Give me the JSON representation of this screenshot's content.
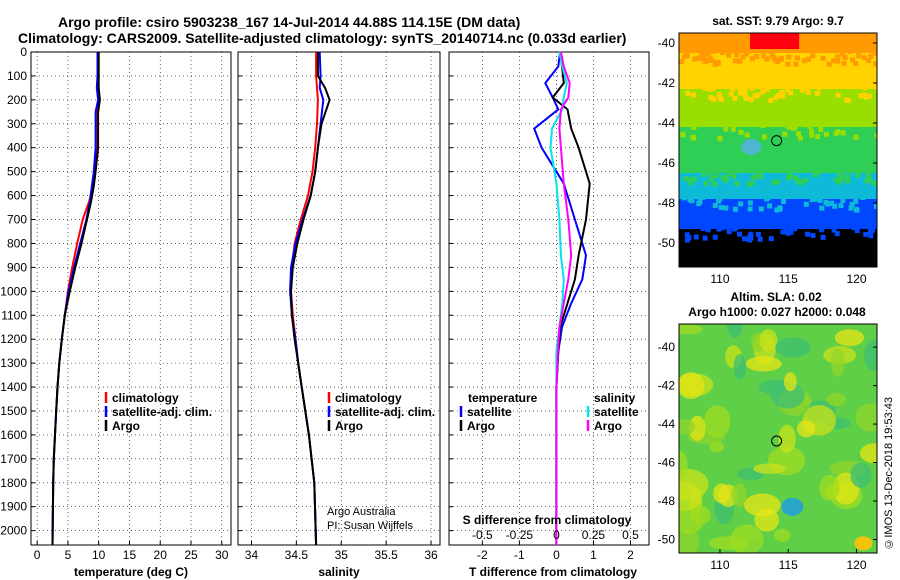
{
  "header": {
    "title_line1": "Argo profile: csiro 5903238_167 14-Jul-2014 44.88S 114.15E (DM data)",
    "title_line2": "Climatology: CARS2009. Satellite-adjusted climatology: synTS_20140714.nc (0.033d earlier)"
  },
  "footer": {
    "credit": "©IMOS 13-Dec-2018 19:53:43"
  },
  "colors": {
    "climatology": "#ff0000",
    "satellite": "#0000ff",
    "argo": "#000000",
    "sat_salinity": "#00e5ee",
    "argo_salinity": "#ff00ff"
  },
  "chart_data": [
    {
      "type": "line",
      "name": "temperature",
      "xlabel": "temperature (deg C)",
      "xlim": [
        -1,
        31.5
      ],
      "xticks": [
        "0",
        "5",
        "10",
        "15",
        "20",
        "25",
        "30"
      ],
      "xtick_values": [
        0,
        5,
        10,
        15,
        20,
        25,
        30
      ],
      "ylim": [
        0,
        2060
      ],
      "yticks": [
        "0",
        "100",
        "200",
        "300",
        "400",
        "500",
        "600",
        "700",
        "800",
        "900",
        "1000",
        "1100",
        "1200",
        "1300",
        "1400",
        "1500",
        "1600",
        "1700",
        "1800",
        "1900",
        "2000"
      ],
      "ytick_values": [
        0,
        100,
        200,
        300,
        400,
        500,
        600,
        700,
        800,
        900,
        1000,
        1100,
        1200,
        1300,
        1400,
        1500,
        1600,
        1700,
        1800,
        1900,
        2000
      ],
      "legend": [
        "climatology",
        "satellite-adj. clim.",
        "Argo"
      ],
      "legend_colors": [
        "#ff0000",
        "#0000ff",
        "#000000"
      ],
      "series": [
        {
          "name": "climatology",
          "color": "#ff0000",
          "x": [
            9.9,
            9.9,
            9.9,
            10.1,
            9.6,
            9.6,
            9.3,
            9.0,
            8.5,
            7.4,
            6.5,
            5.7,
            5.0,
            4.5,
            4.0,
            3.6,
            3.3,
            3.1,
            2.9,
            2.7,
            2.6,
            2.5
          ],
          "y": [
            0,
            100,
            150,
            200,
            250,
            400,
            500,
            560,
            620,
            700,
            800,
            900,
            1000,
            1100,
            1200,
            1300,
            1400,
            1500,
            1600,
            1700,
            1800,
            2060
          ]
        },
        {
          "name": "satellite-adj. clim.",
          "color": "#0000ff",
          "x": [
            9.8,
            9.8,
            9.7,
            9.9,
            9.5,
            9.5,
            9.2,
            8.9,
            8.6,
            8.0,
            7.0,
            6.0,
            5.1,
            4.5,
            4.0,
            3.6,
            3.3,
            3.1,
            2.9,
            2.7,
            2.6,
            2.5
          ],
          "y": [
            0,
            100,
            150,
            200,
            250,
            400,
            500,
            560,
            620,
            700,
            800,
            900,
            1000,
            1100,
            1200,
            1300,
            1400,
            1500,
            1600,
            1700,
            1800,
            2060
          ]
        },
        {
          "name": "Argo",
          "color": "#000000",
          "x": [
            10.0,
            10.0,
            10.0,
            10.2,
            9.9,
            9.9,
            9.5,
            9.2,
            8.8,
            8.1,
            7.2,
            6.2,
            5.3,
            4.5,
            4.0,
            3.6,
            3.3,
            3.1,
            2.9,
            2.7,
            2.6,
            2.5
          ],
          "y": [
            0,
            100,
            150,
            200,
            250,
            400,
            500,
            560,
            620,
            700,
            800,
            900,
            1000,
            1100,
            1200,
            1300,
            1400,
            1500,
            1600,
            1700,
            1800,
            2060
          ]
        }
      ]
    },
    {
      "type": "line",
      "name": "salinity",
      "xlabel": "salinity",
      "xlim": [
        33.85,
        36.1
      ],
      "xticks": [
        "34",
        "34.5",
        "35",
        "35.5",
        "36"
      ],
      "xtick_values": [
        34,
        34.5,
        35,
        35.5,
        36
      ],
      "ylim": [
        0,
        2060
      ],
      "legend": [
        "climatology",
        "satellite-adj. clim.",
        "Argo"
      ],
      "legend_colors": [
        "#ff0000",
        "#0000ff",
        "#000000"
      ],
      "annotation": [
        "Argo Australia",
        "PI: Susan Wijffels"
      ],
      "series": [
        {
          "name": "climatology",
          "color": "#ff0000",
          "x": [
            34.72,
            34.72,
            34.73,
            34.74,
            34.73,
            34.71,
            34.68,
            34.63,
            34.55,
            34.48,
            34.45,
            34.44,
            34.46,
            34.49,
            34.52,
            34.56,
            34.6,
            34.64,
            34.67,
            34.7,
            34.72
          ],
          "y": [
            0,
            100,
            150,
            200,
            300,
            400,
            500,
            600,
            700,
            800,
            900,
            1000,
            1100,
            1200,
            1300,
            1400,
            1500,
            1600,
            1700,
            1800,
            2060
          ]
        },
        {
          "name": "satellite-adj. clim.",
          "color": "#0000ff",
          "x": [
            34.76,
            34.77,
            34.76,
            34.8,
            34.77,
            34.74,
            34.71,
            34.66,
            34.57,
            34.49,
            34.44,
            34.43,
            34.45,
            34.49,
            34.52,
            34.56,
            34.6,
            34.64,
            34.67,
            34.7,
            34.72
          ],
          "y": [
            0,
            100,
            150,
            200,
            300,
            400,
            500,
            600,
            700,
            800,
            900,
            1000,
            1100,
            1200,
            1300,
            1400,
            1500,
            1600,
            1700,
            1800,
            2060
          ]
        },
        {
          "name": "Argo",
          "color": "#000000",
          "x": [
            34.74,
            34.74,
            34.82,
            34.87,
            34.78,
            34.74,
            34.71,
            34.66,
            34.58,
            34.51,
            34.46,
            34.44,
            34.45,
            34.48,
            34.52,
            34.56,
            34.6,
            34.64,
            34.67,
            34.7,
            34.72
          ],
          "y": [
            0,
            100,
            150,
            200,
            300,
            400,
            500,
            600,
            700,
            800,
            900,
            1000,
            1100,
            1200,
            1300,
            1400,
            1500,
            1600,
            1700,
            1800,
            2060
          ]
        }
      ]
    },
    {
      "type": "line",
      "name": "difference",
      "xlabel": "T difference from climatology",
      "xlabel2": "S difference from climatology",
      "xlim": [
        -2.9,
        2.5
      ],
      "xticks": [
        "-2",
        "-1",
        "0",
        "1",
        "2"
      ],
      "xtick_values": [
        -2,
        -1,
        0,
        1,
        2
      ],
      "sticks": [
        "-0.5",
        "-0.25",
        "0",
        "0.25",
        "0.5"
      ],
      "stick_values": [
        -0.5,
        -0.25,
        0,
        0.25,
        0.5
      ],
      "ylim": [
        0,
        2060
      ],
      "legend_left_title": "temperature",
      "legend_right_title": "salinity",
      "legend_left": [
        "satellite",
        "Argo"
      ],
      "legend_left_colors": [
        "#0000ff",
        "#000000"
      ],
      "legend_right": [
        "satellite",
        "Argo"
      ],
      "legend_right_colors": [
        "#00e5ee",
        "#ff00ff"
      ],
      "series": [
        {
          "name": "satellite",
          "quantity": "temperature",
          "color": "#0000ff",
          "x": [
            0.1,
            0.05,
            -0.3,
            -0.1,
            0.05,
            -0.6,
            -0.4,
            0.2,
            0.5,
            0.8,
            0.7,
            0.4,
            0.15,
            0.05,
            0,
            0,
            0,
            0
          ],
          "y": [
            0,
            60,
            130,
            190,
            240,
            320,
            400,
            550,
            700,
            850,
            950,
            1050,
            1150,
            1250,
            1400,
            1600,
            1800,
            2060
          ]
        },
        {
          "name": "Argo",
          "quantity": "temperature",
          "color": "#000000",
          "x": [
            0.1,
            0.15,
            0.2,
            -0.1,
            0.3,
            0.4,
            0.6,
            0.9,
            0.8,
            0.6,
            0.5,
            0.3,
            0.1,
            0.05,
            0,
            0,
            0,
            0
          ],
          "y": [
            0,
            60,
            130,
            190,
            240,
            320,
            400,
            550,
            700,
            850,
            950,
            1050,
            1150,
            1250,
            1400,
            1600,
            1800,
            2060
          ]
        },
        {
          "name": "satellite",
          "quantity": "salinity",
          "color": "#00e5ee",
          "x": [
            0.02,
            0.04,
            0.07,
            0.05,
            0.04,
            -0.03,
            -0.04,
            0.0,
            0.02,
            0.03,
            0.05,
            0.04,
            0.02,
            0.0,
            0.0,
            0.0,
            0.0,
            0.0
          ],
          "y": [
            0,
            60,
            130,
            190,
            240,
            320,
            400,
            550,
            700,
            850,
            950,
            1050,
            1150,
            1250,
            1400,
            1600,
            1800,
            2060
          ]
        },
        {
          "name": "Argo",
          "quantity": "salinity",
          "color": "#ff00ff",
          "x": [
            0.03,
            0.05,
            0.09,
            0.08,
            0.03,
            0.02,
            0.03,
            0.05,
            0.08,
            0.1,
            0.08,
            0.05,
            0.02,
            0.01,
            0.0,
            0.0,
            0.0,
            0.0
          ],
          "y": [
            0,
            60,
            130,
            190,
            240,
            320,
            400,
            550,
            700,
            850,
            950,
            1050,
            1150,
            1250,
            1400,
            1600,
            1800,
            2060
          ]
        }
      ]
    },
    {
      "type": "heatmap",
      "name": "sst_map",
      "title": "sat. SST: 9.79 Argo: 9.7",
      "xlim": [
        107,
        121.5
      ],
      "ylim": [
        -51.2,
        -39.5
      ],
      "xticks": [
        "110",
        "115",
        "120"
      ],
      "xtick_values": [
        110,
        115,
        120
      ],
      "yticks": [
        "-40",
        "-42",
        "-44",
        "-46",
        "-48",
        "-50"
      ],
      "ytick_values": [
        -40,
        -42,
        -44,
        -46,
        -48,
        -50
      ],
      "marker": {
        "lon": 114.15,
        "lat": -44.88
      },
      "value_bands": [
        {
          "lat_from": -39.5,
          "lat_to": -40.5,
          "color": "#ff9a00"
        },
        {
          "lat_from": -40.5,
          "lat_to": -42.3,
          "color": "#ffd200"
        },
        {
          "lat_from": -42.3,
          "lat_to": -44.2,
          "color": "#9ade00"
        },
        {
          "lat_from": -44.2,
          "lat_to": -46.5,
          "color": "#2fcf56"
        },
        {
          "lat_from": -46.5,
          "lat_to": -47.8,
          "color": "#0fb9d8"
        },
        {
          "lat_from": -47.8,
          "lat_to": -49.3,
          "color": "#0047ff"
        },
        {
          "lat_from": -49.3,
          "lat_to": -51.2,
          "color": "#000000"
        }
      ]
    },
    {
      "type": "heatmap",
      "name": "sla_map",
      "title": "Altim. SLA: 0.02",
      "subtitle": "Argo h1000: 0.027 h2000: 0.048",
      "xlim": [
        107,
        121.5
      ],
      "ylim": [
        -50.7,
        -38.8
      ],
      "xticks": [
        "110",
        "115",
        "120"
      ],
      "xtick_values": [
        110,
        115,
        120
      ],
      "yticks": [
        "-40",
        "-42",
        "-44",
        "-46",
        "-48",
        "-50"
      ],
      "ytick_values": [
        -40,
        -42,
        -44,
        -46,
        -48,
        -50
      ],
      "marker": {
        "lon": 114.15,
        "lat": -44.88
      },
      "background_color": "#5fcf48"
    }
  ]
}
